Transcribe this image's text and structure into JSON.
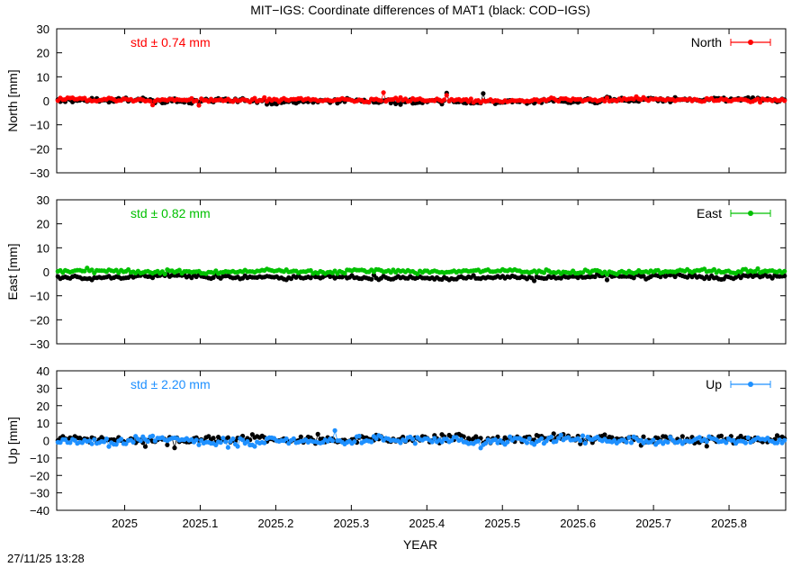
{
  "title": "MIT−IGS: Coordinate differences of MAT1 (black: COD−IGS)",
  "timestamp": "27/11/25 13:28",
  "xlabel": "YEAR",
  "x_tick_labels": [
    "2025",
    "2025.1",
    "2025.2",
    "2025.3",
    "2025.4",
    "2025.5",
    "2025.6",
    "2025.7",
    "2025.8"
  ],
  "chart_data": [
    {
      "type": "scatter",
      "ylabel": "North [mm]",
      "xlim": [
        2024.91,
        2025.875
      ],
      "ylim": [
        -30,
        30
      ],
      "y_ticks": [
        30,
        20,
        10,
        0,
        -10,
        -20,
        -30
      ],
      "legend": "North",
      "legend_position": "top-right",
      "std_label": "std ± 0.74 mm",
      "series": [
        {
          "name": "North",
          "color": "#ff0000",
          "mean": 0.4,
          "std": 0.74
        },
        {
          "color": "#000000",
          "mean": 0.0,
          "std": 1.0
        }
      ]
    },
    {
      "type": "scatter",
      "ylabel": "East [mm]",
      "xlim": [
        2024.91,
        2025.875
      ],
      "ylim": [
        -30,
        30
      ],
      "y_ticks": [
        30,
        20,
        10,
        0,
        -10,
        -20,
        -30
      ],
      "legend": "East",
      "legend_position": "top-right",
      "std_label": "std ± 0.82 mm",
      "series": [
        {
          "name": "East",
          "color": "#00c000",
          "mean": 0.2,
          "std": 0.82
        },
        {
          "color": "#000000",
          "mean": -2.2,
          "std": 0.8
        }
      ]
    },
    {
      "type": "scatter",
      "ylabel": "Up [mm]",
      "xlim": [
        2024.91,
        2025.875
      ],
      "ylim": [
        -40,
        40
      ],
      "y_ticks": [
        40,
        30,
        20,
        10,
        0,
        -10,
        -20,
        -30,
        -40
      ],
      "legend": "Up",
      "legend_position": "top-right",
      "std_label": "std ± 2.20 mm",
      "series": [
        {
          "name": "Up",
          "color": "#1e90ff",
          "mean": 0.3,
          "std": 2.2
        },
        {
          "color": "#000000",
          "mean": 0.8,
          "std": 2.4
        }
      ]
    }
  ]
}
